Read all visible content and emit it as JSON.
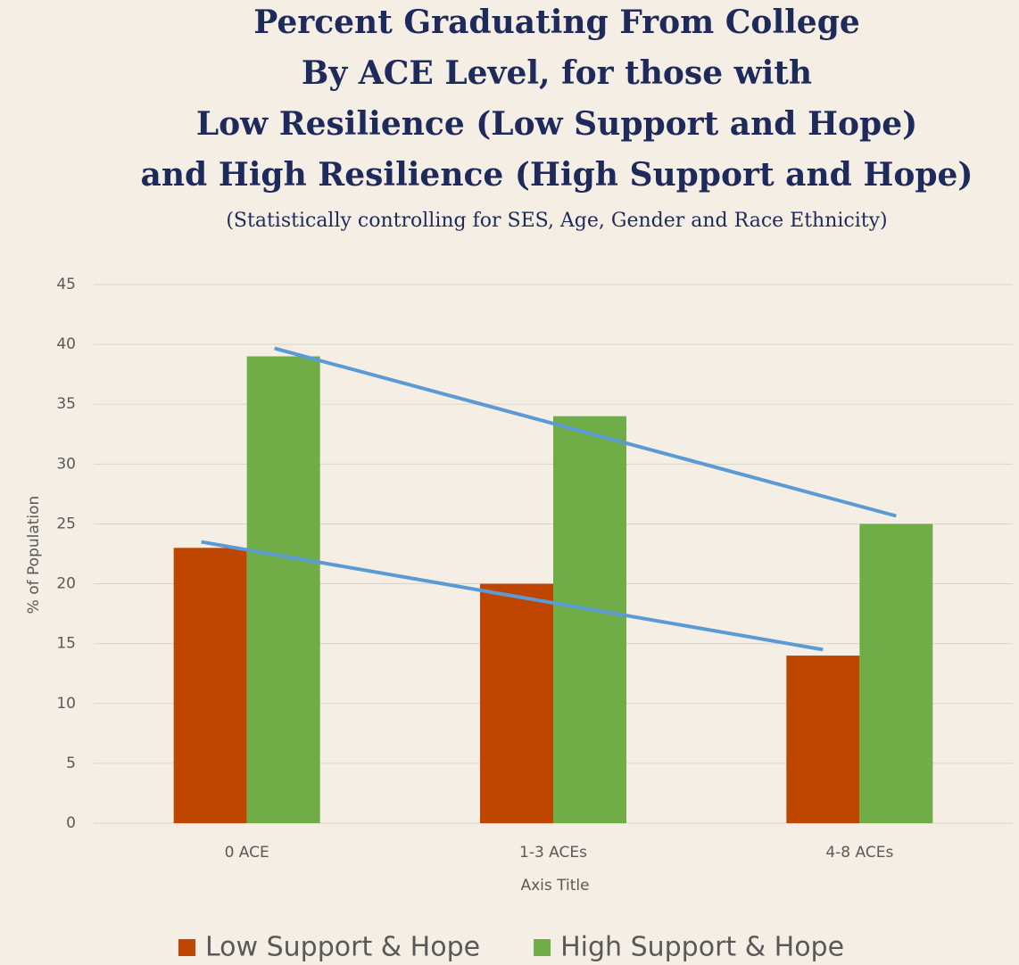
{
  "chart_data": {
    "type": "bar",
    "title": [
      "Percent Graduating From College",
      "By ACE Level, for those with",
      "Low Resilience (Low Support and Hope)",
      "and High Resilience (High Support and Hope)"
    ],
    "subtitle": "(Statistically controlling for SES, Age, Gender and Race Ethnicity)",
    "x_label": "Axis Title",
    "y_label": "% of Population",
    "categories": [
      "0 ACE",
      "1-3 ACEs",
      "4-8 ACEs"
    ],
    "series": [
      {
        "name": "Low Support & Hope",
        "color": "#bf4600",
        "values": [
          23,
          20,
          14
        ]
      },
      {
        "name": "High Support & Hope",
        "color": "#70ad47",
        "values": [
          39,
          34,
          25
        ]
      }
    ],
    "ylim": [
      0,
      45
    ],
    "yticks": [
      0,
      5,
      10,
      15,
      20,
      25,
      30,
      35,
      40,
      45
    ],
    "grid": true,
    "trendline": true,
    "trendline_color": "#5b9bd5",
    "legend": "bottom"
  }
}
